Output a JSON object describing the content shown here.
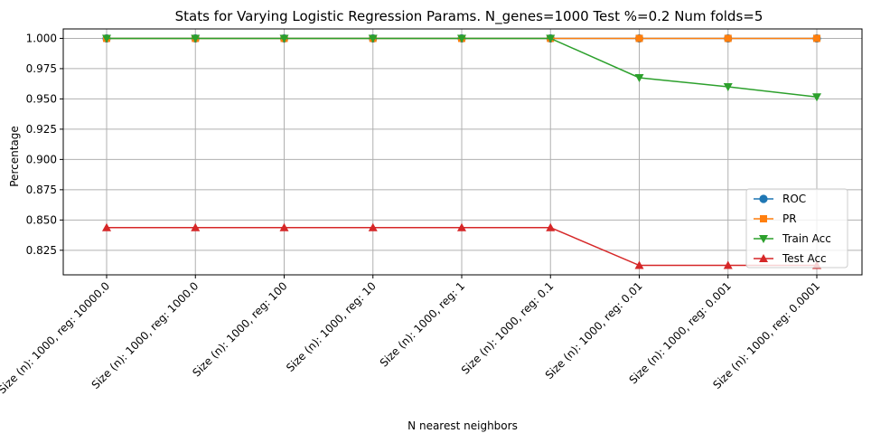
{
  "chart_data": {
    "type": "line",
    "title": "Stats for Varying Logistic Regression Params. N_genes=1000 Test %=0.2 Num folds=5",
    "xlabel": "N nearest neighbors",
    "ylabel": "Percentage",
    "categories": [
      "Size (n): 1000, reg: 10000.0",
      "Size (n): 1000, reg: 1000.0",
      "Size (n): 1000, reg: 100",
      "Size (n): 1000, reg: 10",
      "Size (n): 1000, reg: 1",
      "Size (n): 1000, reg: 0.1",
      "Size (n): 1000, reg: 0.01",
      "Size (n): 1000, reg: 0.001",
      "Size (n): 1000, reg: 0.0001"
    ],
    "ylim": [
      0.8047,
      1.0078
    ],
    "yticks": [
      "0.825",
      "0.850",
      "0.875",
      "0.900",
      "0.925",
      "0.950",
      "0.975",
      "1.000"
    ],
    "grid": true,
    "legend_position": "lower-right",
    "series": [
      {
        "name": "ROC",
        "color": "#1f77b4",
        "marker": "circle",
        "values": [
          1.0,
          1.0,
          1.0,
          1.0,
          1.0,
          1.0,
          1.0,
          1.0,
          1.0
        ]
      },
      {
        "name": "PR",
        "color": "#ff7f0e",
        "marker": "square",
        "values": [
          1.0,
          1.0,
          1.0,
          1.0,
          1.0,
          1.0,
          1.0,
          1.0,
          1.0
        ]
      },
      {
        "name": "Train Acc",
        "color": "#2ca02c",
        "marker": "triangle-down",
        "values": [
          1.0,
          1.0,
          1.0,
          1.0,
          1.0,
          1.0,
          0.9675,
          0.96,
          0.9516
        ]
      },
      {
        "name": "Test Acc",
        "color": "#d62728",
        "marker": "triangle-up",
        "values": [
          0.84375,
          0.84375,
          0.84375,
          0.84375,
          0.84375,
          0.84375,
          0.8125,
          0.8125,
          0.8125
        ]
      }
    ]
  }
}
